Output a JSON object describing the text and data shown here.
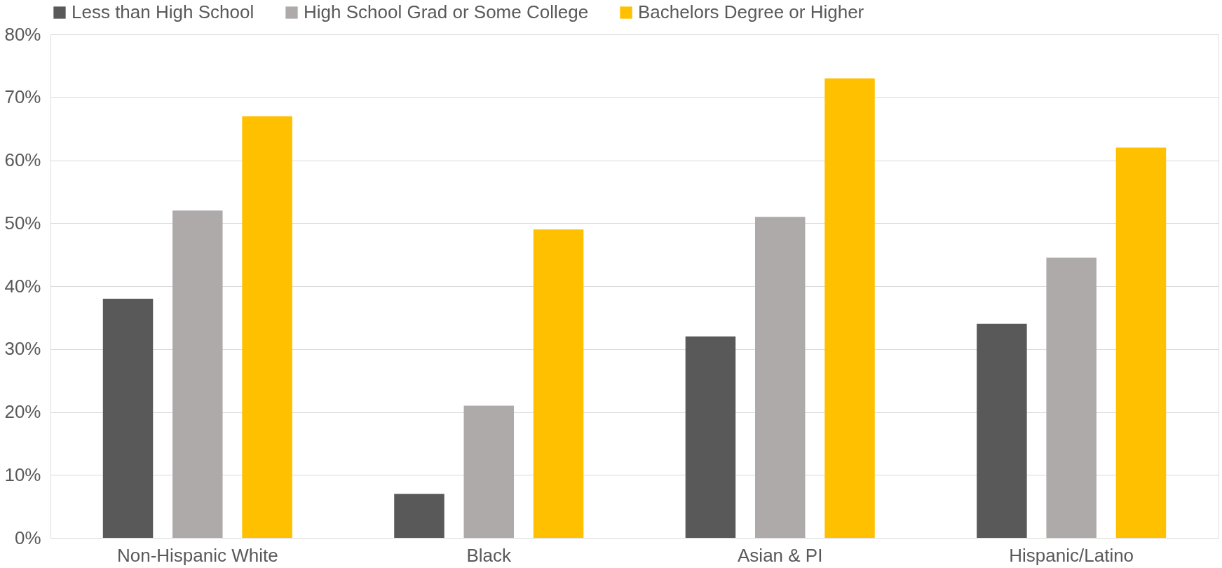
{
  "chart_data": {
    "type": "bar",
    "categories": [
      "Non-Hispanic White",
      "Black",
      "Asian & PI",
      "Hispanic/Latino"
    ],
    "series": [
      {
        "name": "Less than High School",
        "color": "#595959",
        "values": [
          38,
          7,
          32,
          34
        ]
      },
      {
        "name": "High School Grad or Some College",
        "color": "#aeaaaa",
        "values": [
          52,
          21,
          51,
          44.5
        ]
      },
      {
        "name": "Bachelors Degree or Higher",
        "color": "#ffc000",
        "values": [
          67,
          49,
          73,
          62
        ]
      }
    ],
    "ylim": [
      0,
      80
    ],
    "yticks": [
      {
        "value": 0,
        "label": "0%"
      },
      {
        "value": 10,
        "label": "10%"
      },
      {
        "value": 20,
        "label": "20%"
      },
      {
        "value": 30,
        "label": "30%"
      },
      {
        "value": 40,
        "label": "40%"
      },
      {
        "value": 50,
        "label": "50%"
      },
      {
        "value": 60,
        "label": "60%"
      },
      {
        "value": 70,
        "label": "70%"
      },
      {
        "value": 80,
        "label": "80%"
      }
    ],
    "grid": "y",
    "legend": "top"
  }
}
